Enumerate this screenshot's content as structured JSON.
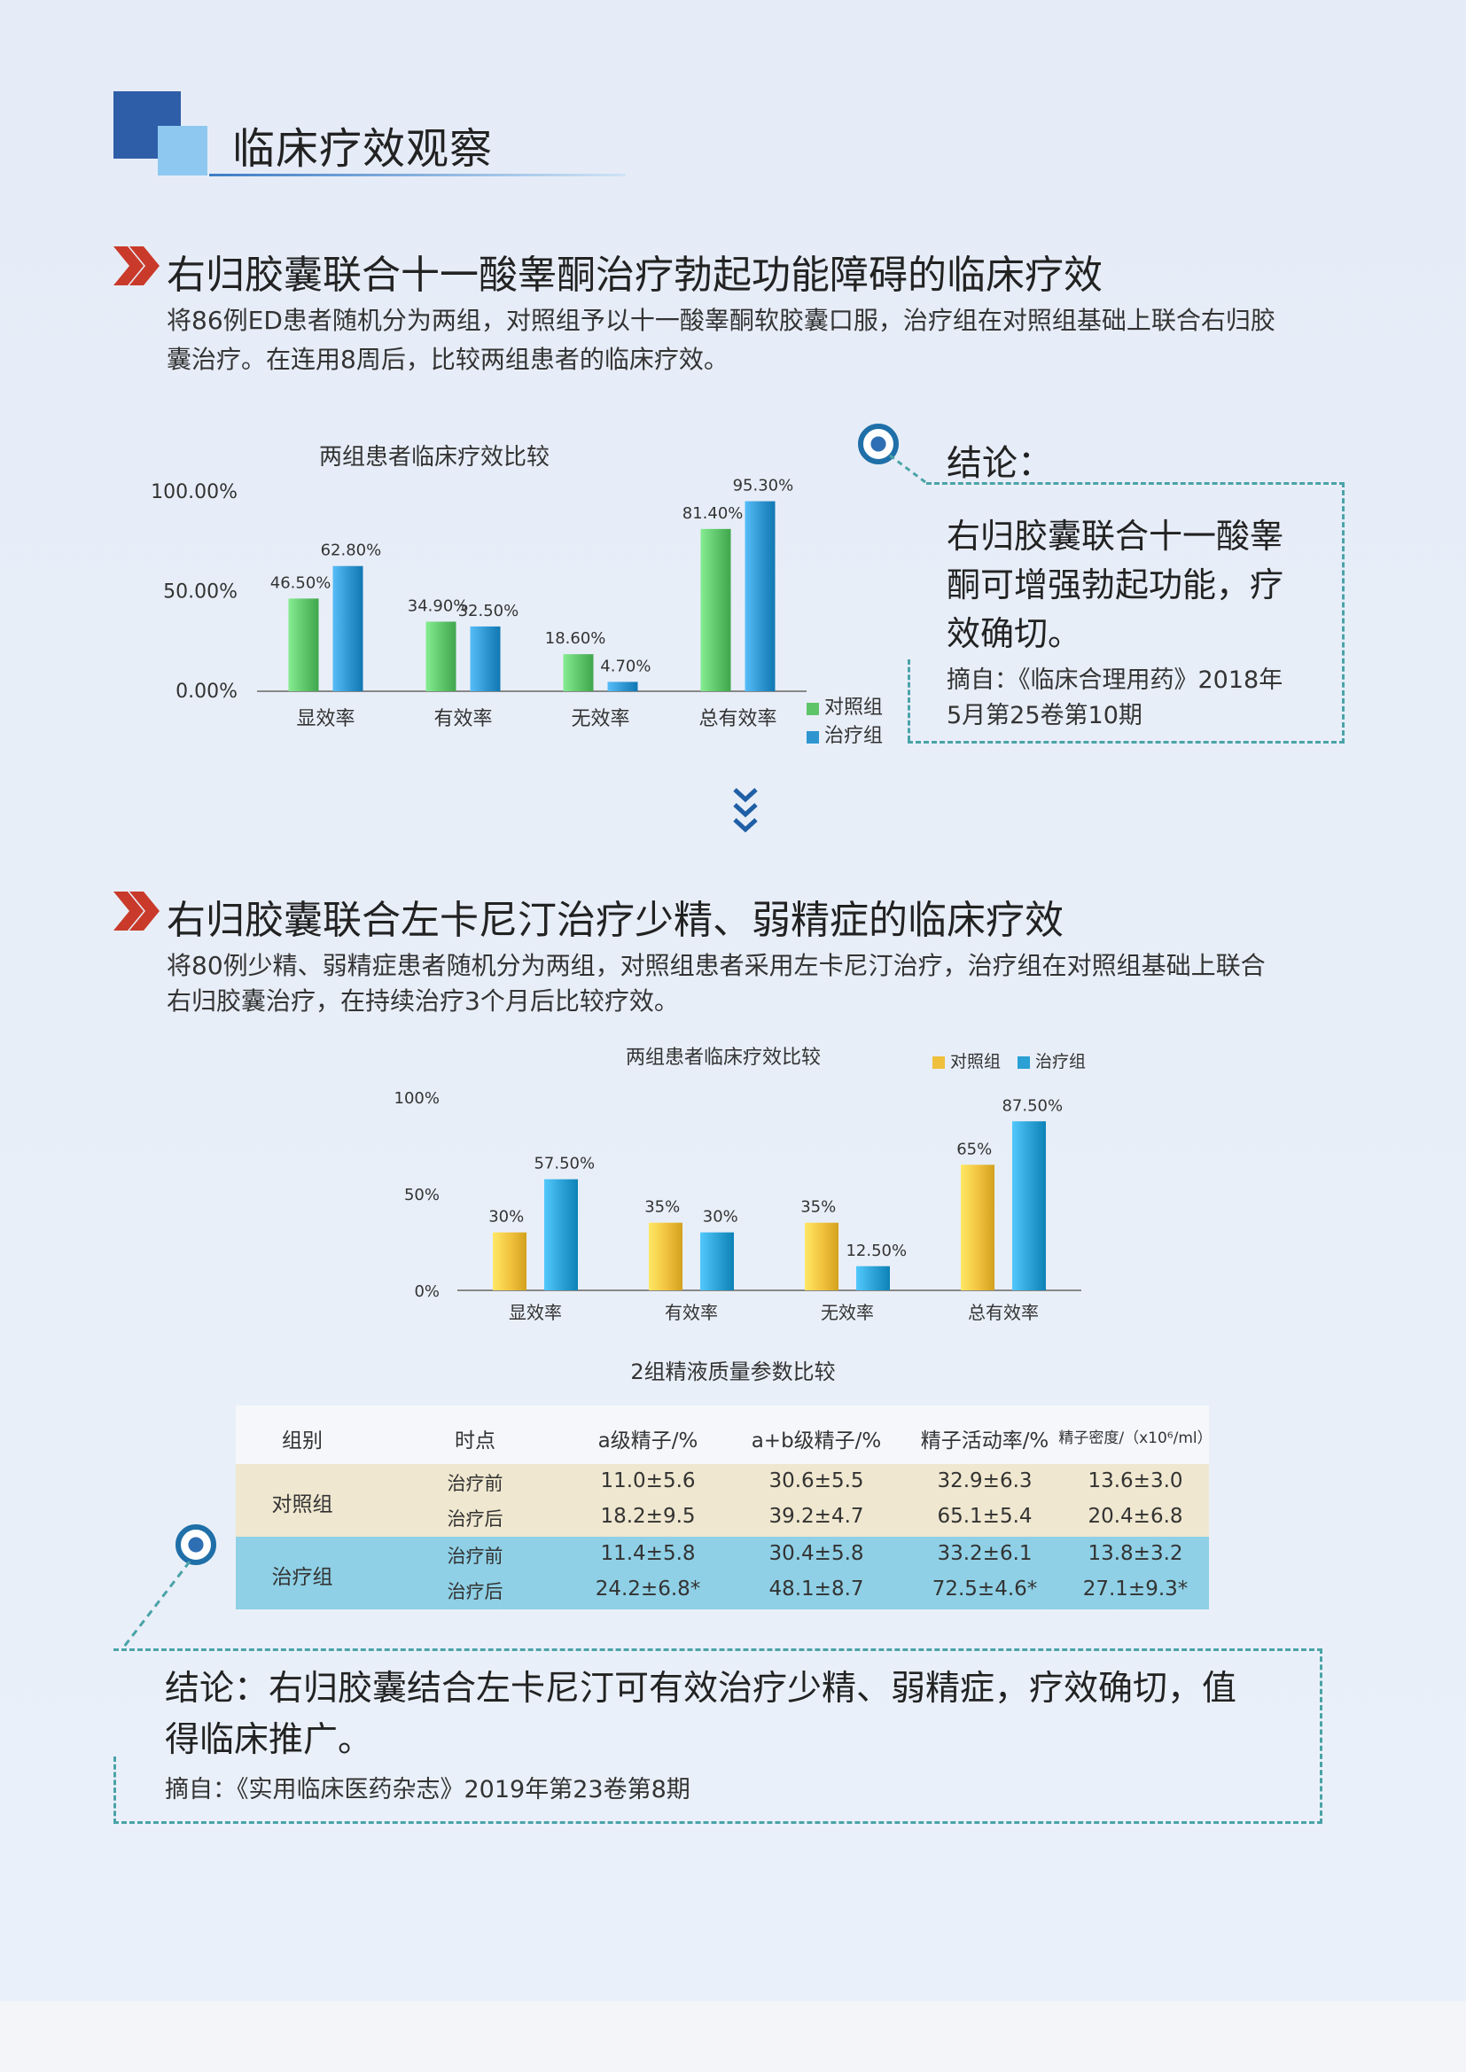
{
  "header": {
    "title": "临床疗效观察"
  },
  "section1": {
    "title": "右归胶囊联合十一酸睾酮治疗勃起功能障碍的临床疗效",
    "desc_line1": "将86例ED患者随机分为两组，对照组予以十一酸睾酮软胶囊口服，治疗组在对照组基础上联合右归胶",
    "desc_line2": "囊治疗。在连用8周后，比较两组患者的临床疗效。",
    "conclusion_head": "结论：",
    "conclusion_line1": "右归胶囊联合十一酸睾",
    "conclusion_line2": "酮可增强勃起功能，疗",
    "conclusion_line3": "效确切。",
    "source_line1": "摘自：《临床合理用药》2018年",
    "source_line2": "5月第25卷第10期"
  },
  "section2": {
    "title": "右归胶囊联合左卡尼汀治疗少精、弱精症的临床疗效",
    "desc_line1": "将80例少精、弱精症患者随机分为两组，对照组患者采用左卡尼汀治疗，治疗组在对照组基础上联合",
    "desc_line2": "右归胶囊治疗，在持续治疗3个月后比较疗效。",
    "conclusion_line1": "结论：右归胶囊结合左卡尼汀可有效治疗少精、弱精症，疗效确切，值",
    "conclusion_line2": "得临床推广。",
    "source": "摘自：《实用临床医药杂志》2019年第23卷第8期"
  },
  "chart_data": [
    {
      "type": "bar",
      "title": "两组患者临床疗效比较",
      "categories": [
        "显效率",
        "有效率",
        "无效率",
        "总有效率"
      ],
      "series": [
        {
          "name": "对照组",
          "values": [
            46.5,
            34.9,
            18.6,
            81.4
          ],
          "labels": [
            "46.50%",
            "34.90%",
            "18.60%",
            "81.40%"
          ],
          "color": "#5ec46a"
        },
        {
          "name": "治疗组",
          "values": [
            62.8,
            32.5,
            4.7,
            95.3
          ],
          "labels": [
            "62.80%",
            "32.50%",
            "4.70%",
            "95.30%"
          ],
          "color": "#2f95d0"
        }
      ],
      "yticks": [
        "0.00%",
        "50.00%",
        "100.00%"
      ],
      "ylim": [
        0,
        100
      ],
      "legend": "bottom-right"
    },
    {
      "type": "bar",
      "title": "两组患者临床疗效比较",
      "categories": [
        "显效率",
        "有效率",
        "无效率",
        "总有效率"
      ],
      "series": [
        {
          "name": "对照组",
          "values": [
            30,
            35,
            35,
            65
          ],
          "labels": [
            "30%",
            "35%",
            "35%",
            "65%"
          ],
          "color": "#f0c03c"
        },
        {
          "name": "治疗组",
          "values": [
            57.5,
            30,
            12.5,
            87.5
          ],
          "labels": [
            "57.50%",
            "30%",
            "12.50%",
            "87.50%"
          ],
          "color": "#2aa0d4"
        }
      ],
      "yticks": [
        "0%",
        "50%",
        "100%"
      ],
      "ylim": [
        0,
        100
      ],
      "legend": "top-right"
    }
  ],
  "table": {
    "title": "2组精液质量参数比较",
    "headers": [
      "组别",
      "时点",
      "a级精子/%",
      "a+b级精子/%",
      "精子活动率/%",
      "精子密度/（x10⁶/ml）"
    ],
    "groups": [
      {
        "name": "对照组",
        "rows": [
          {
            "time": "治疗前",
            "a": "11.0±5.6",
            "ab": "30.6±5.5",
            "motility": "32.9±6.3",
            "density": "13.6±3.0"
          },
          {
            "time": "治疗后",
            "a": "18.2±9.5",
            "ab": "39.2±4.7",
            "motility": "65.1±5.4",
            "density": "20.4±6.8"
          }
        ]
      },
      {
        "name": "治疗组",
        "rows": [
          {
            "time": "治疗前",
            "a": "11.4±5.8",
            "ab": "30.4±5.8",
            "motility": "33.2±6.1",
            "density": "13.8±3.2"
          },
          {
            "time": "治疗后",
            "a": "24.2±6.8*",
            "ab": "48.1±8.7",
            "motility": "72.5±4.6*",
            "density": "27.1±9.3*"
          }
        ]
      }
    ]
  }
}
